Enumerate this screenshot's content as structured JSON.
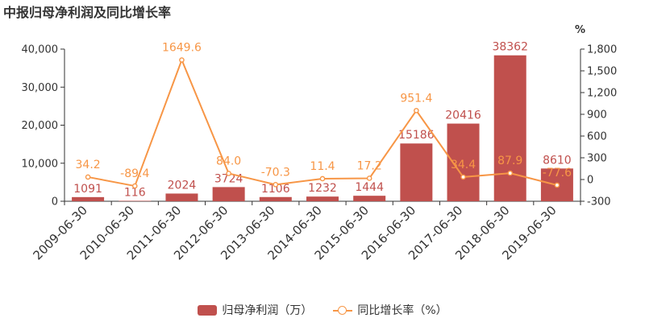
{
  "title": "中报归母净利润及同比增长率",
  "right_axis_unit": "%",
  "legend": {
    "bar_label": "归母净利润（万）",
    "line_label": "同比增长率（%）"
  },
  "colors": {
    "bar": "#c0504d",
    "line": "#f79646",
    "bar_label": "#c0504d",
    "line_label": "#f79646"
  },
  "chart_data": {
    "type": "bar+line",
    "title": "中报归母净利润及同比增长率",
    "categories": [
      "2009-06-30",
      "2010-06-30",
      "2011-06-30",
      "2012-06-30",
      "2013-06-30",
      "2014-06-30",
      "2015-06-30",
      "2016-06-30",
      "2017-06-30",
      "2018-06-30",
      "2019-06-30"
    ],
    "series": [
      {
        "name": "归母净利润（万）",
        "type": "bar",
        "axis": "left",
        "values": [
          1091,
          116,
          2024,
          3724,
          1106,
          1232,
          1444,
          15186,
          20416,
          38362,
          8610
        ],
        "labels": [
          "1091",
          "116",
          "2024",
          "3724",
          "1106",
          "1232",
          "1444",
          "15186",
          "20416",
          "38362",
          "8610"
        ]
      },
      {
        "name": "同比增长率（%）",
        "type": "line",
        "axis": "right",
        "values": [
          34.2,
          -89.4,
          1649.6,
          84.0,
          -70.3,
          11.4,
          17.2,
          951.4,
          34.4,
          87.9,
          -77.6
        ],
        "labels": [
          "34.2",
          "-89.4",
          "1649.6",
          "84.0",
          "-70.3",
          "11.4",
          "17.2",
          "951.4",
          "34.4",
          "87.9",
          "-77.6"
        ]
      }
    ],
    "y_left": {
      "min": 0,
      "max": 40000,
      "ticks": [
        0,
        10000,
        20000,
        30000,
        40000
      ],
      "tick_labels": [
        "0",
        "10,000",
        "20,000",
        "30,000",
        "40,000"
      ]
    },
    "y_right": {
      "min": -300,
      "max": 1800,
      "ticks": [
        -300,
        0,
        300,
        600,
        900,
        1200,
        1500,
        1800
      ],
      "tick_labels": [
        "-300",
        "0",
        "300",
        "600",
        "900",
        "1,200",
        "1,500",
        "1,800"
      ]
    },
    "legend_position": "bottom-center",
    "grid": false
  }
}
